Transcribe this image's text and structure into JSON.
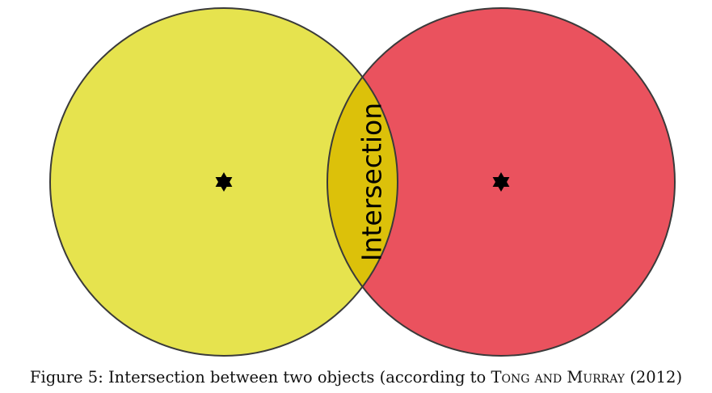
{
  "diagram": {
    "intersection_label": "Intersection",
    "colors": {
      "left_circle": "#e6e34e",
      "right_circle": "#ea525e",
      "intersection": "#dcc10a",
      "outline": "#3a3a3a",
      "star": "#000000"
    },
    "icons": {
      "left_center": "six-pointed-star-icon",
      "right_center": "six-pointed-star-icon"
    }
  },
  "caption": {
    "prefix": "Figure 5: Intersection between two objects (according to ",
    "authors": "Tong and Murray",
    "suffix": " (2012)"
  }
}
